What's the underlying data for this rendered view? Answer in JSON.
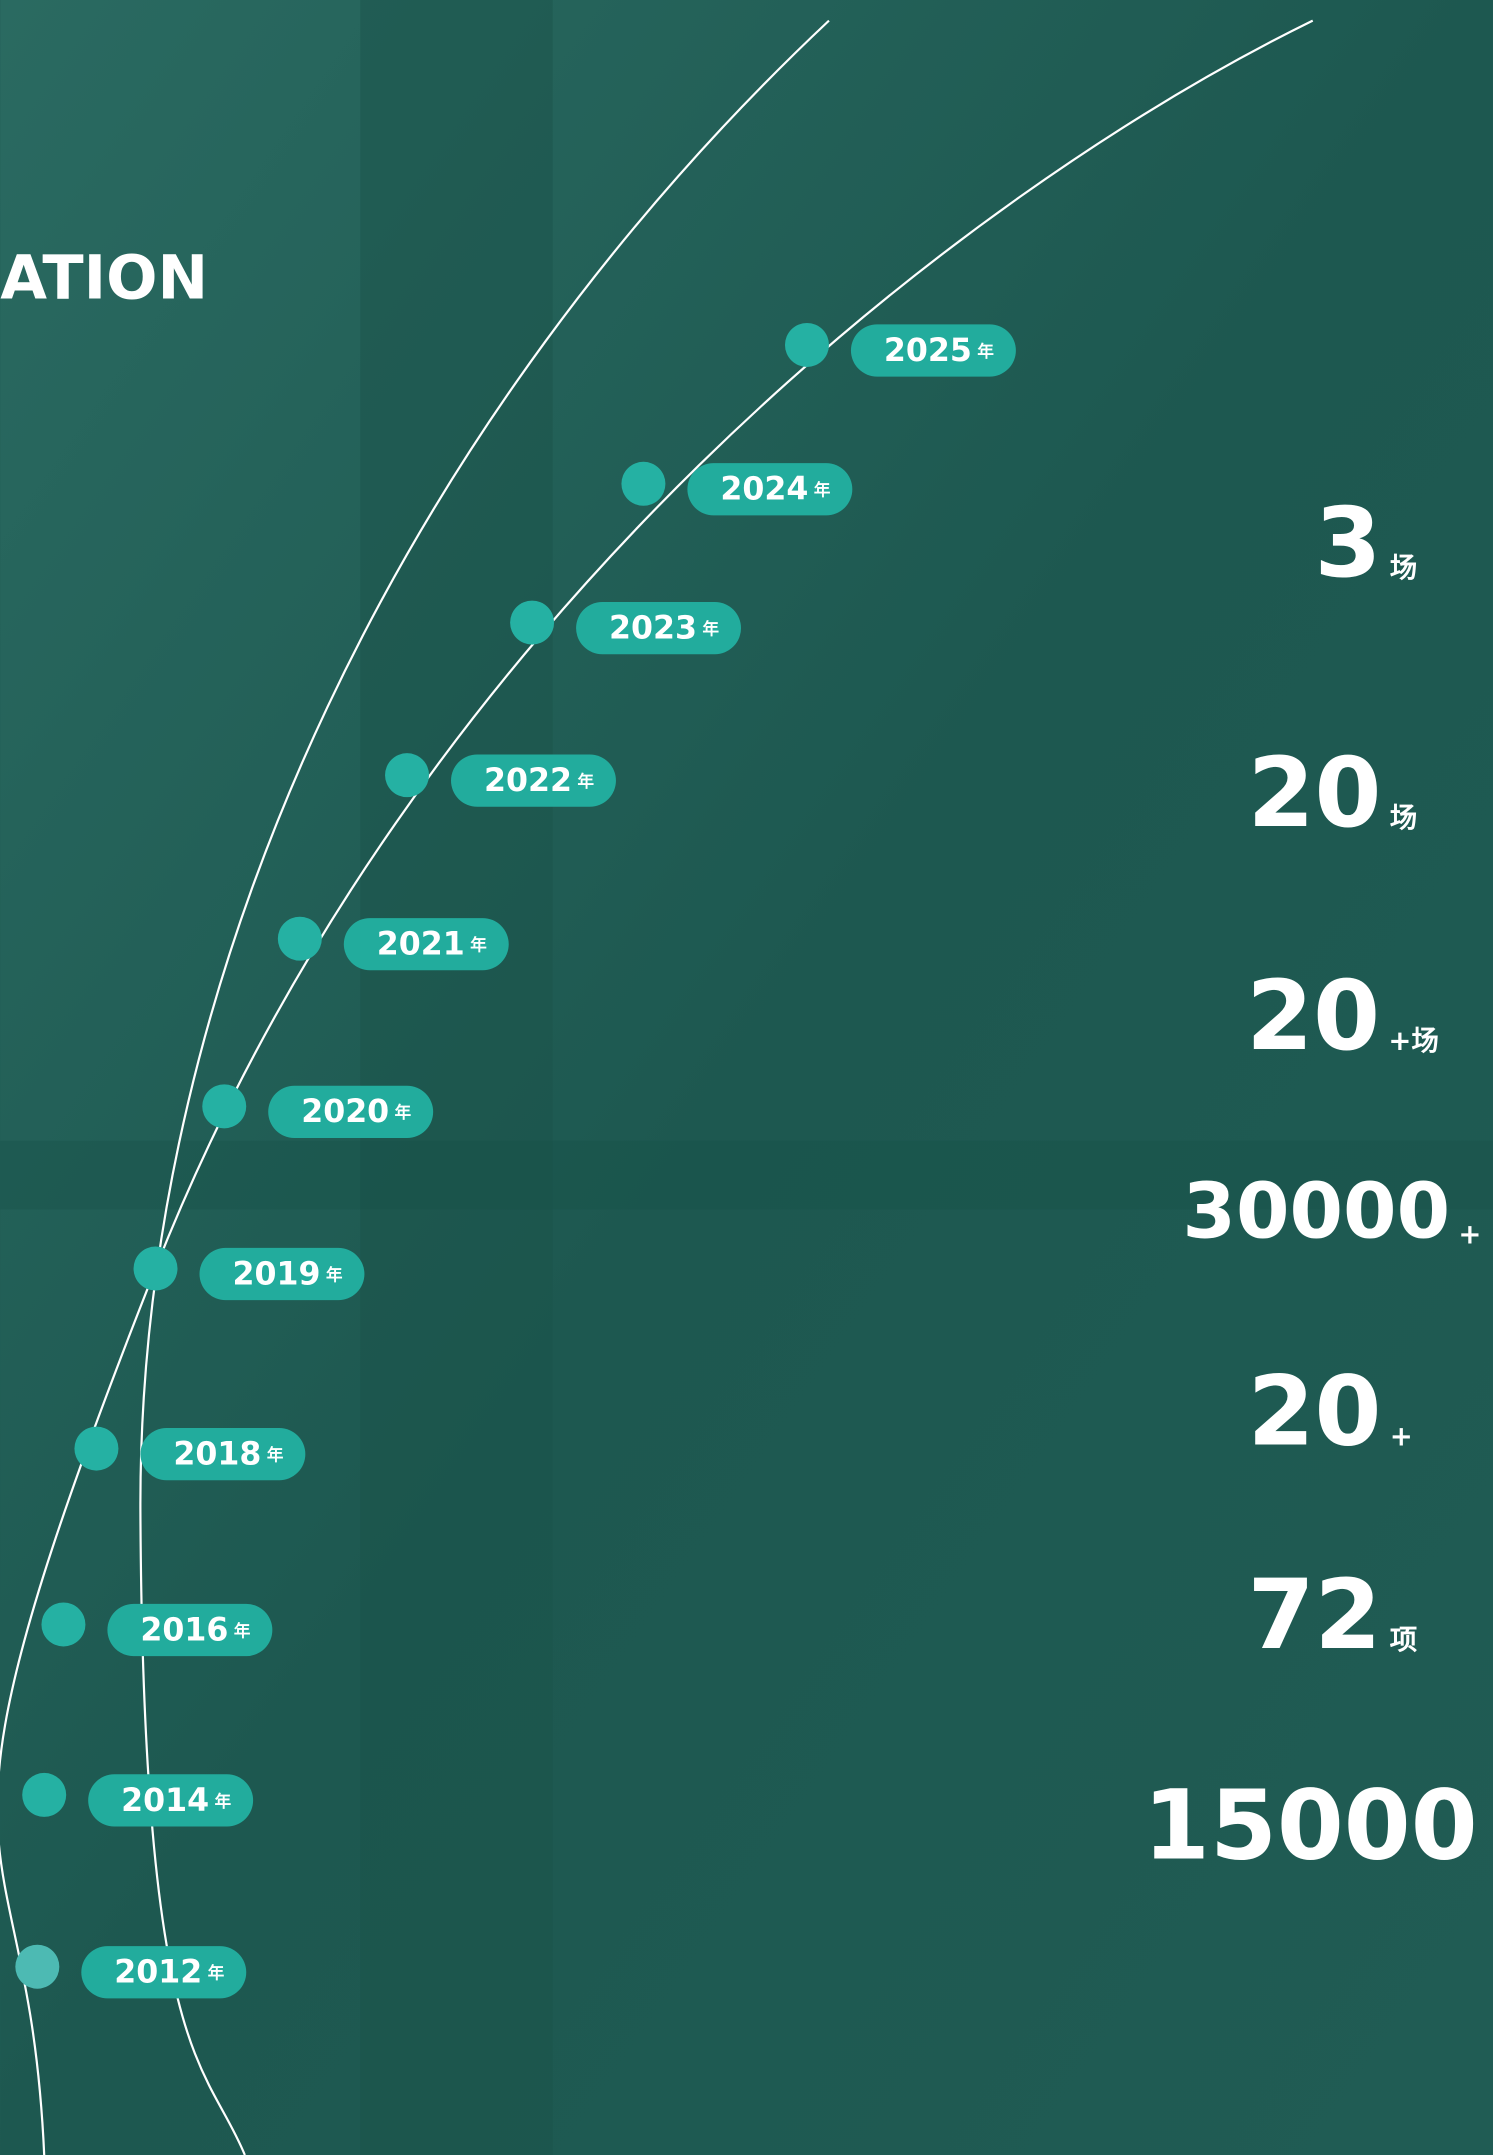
{
  "header": {
    "title": "ATION"
  },
  "timeline": [
    {
      "year": "2025",
      "unit": "年"
    },
    {
      "year": "2024",
      "unit": "年"
    },
    {
      "year": "2023",
      "unit": "年"
    },
    {
      "year": "2022",
      "unit": "年"
    },
    {
      "year": "2021",
      "unit": "年"
    },
    {
      "year": "2020",
      "unit": "年"
    },
    {
      "year": "2019",
      "unit": "年"
    },
    {
      "year": "2018",
      "unit": "年"
    },
    {
      "year": "2016",
      "unit": "年"
    },
    {
      "year": "2014",
      "unit": "年"
    },
    {
      "year": "2012",
      "unit": "年"
    }
  ],
  "stats": [
    {
      "number": "3",
      "unit": "场"
    },
    {
      "number": "20",
      "unit": "场"
    },
    {
      "number": "20",
      "unit": "+场"
    },
    {
      "number": "30000",
      "unit": "+"
    },
    {
      "number": "20",
      "unit": "+"
    },
    {
      "number": "72",
      "unit": "项"
    },
    {
      "number": "15000"
    }
  ]
}
